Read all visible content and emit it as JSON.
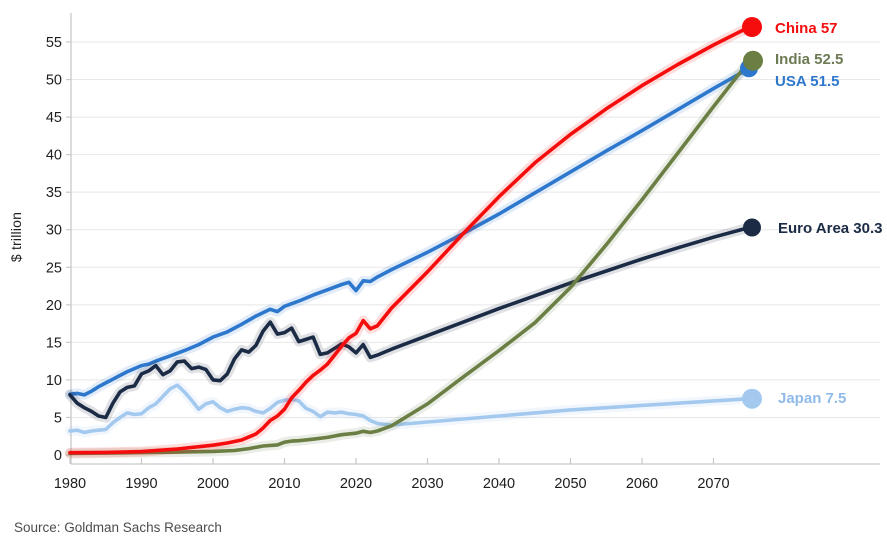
{
  "source_note": "Source: Goldman Sachs Research",
  "chart_data": {
    "type": "line",
    "title": "",
    "ylabel": "$ trillion",
    "xlabel": "",
    "x_ticks": [
      1980,
      1990,
      2000,
      2010,
      2020,
      2030,
      2040,
      2050,
      2060,
      2070
    ],
    "y_ticks": [
      0,
      5,
      10,
      15,
      20,
      25,
      30,
      35,
      40,
      45,
      50,
      55
    ],
    "x_range_years": [
      1980,
      2075
    ],
    "y_range": [
      0,
      57.5
    ],
    "grid": "horizontal-only",
    "legend_position": "end-of-line-labels-right",
    "colors": {
      "gridline": "#e8e8e8",
      "axis": "#c9c9c9",
      "tick_text": "#1d1d1d",
      "source_text": "#4d4d4d"
    },
    "series": [
      {
        "name": "USA",
        "label": "USA 51.5",
        "end_value": 51.5,
        "color": "#2d77cd",
        "text_color": "#2d77cd",
        "points": [
          [
            1980,
            8.1
          ],
          [
            1981,
            8.2
          ],
          [
            1982,
            8.0
          ],
          [
            1983,
            8.5
          ],
          [
            1984,
            9.1
          ],
          [
            1985,
            9.6
          ],
          [
            1986,
            10.1
          ],
          [
            1987,
            10.6
          ],
          [
            1988,
            11.1
          ],
          [
            1989,
            11.5
          ],
          [
            1990,
            11.9
          ],
          [
            1991,
            12.1
          ],
          [
            1992,
            12.5
          ],
          [
            1994,
            13.2
          ],
          [
            1996,
            13.9
          ],
          [
            1998,
            14.7
          ],
          [
            2000,
            15.7
          ],
          [
            2002,
            16.4
          ],
          [
            2004,
            17.4
          ],
          [
            2006,
            18.5
          ],
          [
            2008,
            19.4
          ],
          [
            2009,
            19.1
          ],
          [
            2010,
            19.8
          ],
          [
            2012,
            20.5
          ],
          [
            2014,
            21.3
          ],
          [
            2016,
            22.0
          ],
          [
            2018,
            22.7
          ],
          [
            2019,
            23.0
          ],
          [
            2020,
            21.9
          ],
          [
            2021,
            23.2
          ],
          [
            2022,
            23.1
          ],
          [
            2023,
            23.7
          ],
          [
            2025,
            24.7
          ],
          [
            2030,
            27.0
          ],
          [
            2035,
            29.5
          ],
          [
            2040,
            32.1
          ],
          [
            2045,
            34.9
          ],
          [
            2050,
            37.7
          ],
          [
            2055,
            40.5
          ],
          [
            2060,
            43.2
          ],
          [
            2065,
            46.0
          ],
          [
            2070,
            48.8
          ],
          [
            2075,
            51.5
          ]
        ]
      },
      {
        "name": "Japan",
        "label": "Japan 7.5",
        "end_value": 7.5,
        "color": "#a4c9ef",
        "text_color": "#90bbe9",
        "points": [
          [
            1980,
            3.2
          ],
          [
            1981,
            3.3
          ],
          [
            1982,
            3.0
          ],
          [
            1983,
            3.2
          ],
          [
            1984,
            3.3
          ],
          [
            1985,
            3.4
          ],
          [
            1986,
            4.3
          ],
          [
            1987,
            5.0
          ],
          [
            1988,
            5.6
          ],
          [
            1989,
            5.4
          ],
          [
            1990,
            5.5
          ],
          [
            1991,
            6.3
          ],
          [
            1992,
            6.8
          ],
          [
            1993,
            7.8
          ],
          [
            1994,
            8.8
          ],
          [
            1995,
            9.3
          ],
          [
            1996,
            8.4
          ],
          [
            1997,
            7.3
          ],
          [
            1998,
            6.1
          ],
          [
            1999,
            6.8
          ],
          [
            2000,
            7.1
          ],
          [
            2001,
            6.3
          ],
          [
            2002,
            5.8
          ],
          [
            2003,
            6.1
          ],
          [
            2004,
            6.3
          ],
          [
            2005,
            6.2
          ],
          [
            2006,
            5.8
          ],
          [
            2007,
            5.6
          ],
          [
            2008,
            6.2
          ],
          [
            2009,
            7.0
          ],
          [
            2010,
            7.3
          ],
          [
            2011,
            7.4
          ],
          [
            2012,
            7.2
          ],
          [
            2013,
            6.2
          ],
          [
            2014,
            5.8
          ],
          [
            2015,
            5.1
          ],
          [
            2016,
            5.7
          ],
          [
            2017,
            5.6
          ],
          [
            2018,
            5.7
          ],
          [
            2019,
            5.5
          ],
          [
            2020,
            5.4
          ],
          [
            2021,
            5.2
          ],
          [
            2022,
            4.6
          ],
          [
            2023,
            4.2
          ],
          [
            2025,
            4.0
          ],
          [
            2030,
            4.4
          ],
          [
            2035,
            4.8
          ],
          [
            2040,
            5.2
          ],
          [
            2045,
            5.6
          ],
          [
            2050,
            6.0
          ],
          [
            2055,
            6.3
          ],
          [
            2060,
            6.6
          ],
          [
            2065,
            6.9
          ],
          [
            2070,
            7.2
          ],
          [
            2075,
            7.5
          ]
        ]
      },
      {
        "name": "Euro Area",
        "label": "Euro Area 30.3",
        "end_value": 30.3,
        "color": "#1b2b45",
        "text_color": "#1b2b45",
        "points": [
          [
            1980,
            8.0
          ],
          [
            1981,
            6.9
          ],
          [
            1982,
            6.3
          ],
          [
            1983,
            5.8
          ],
          [
            1984,
            5.2
          ],
          [
            1985,
            5.0
          ],
          [
            1986,
            6.9
          ],
          [
            1987,
            8.4
          ],
          [
            1988,
            9.0
          ],
          [
            1989,
            9.2
          ],
          [
            1990,
            10.8
          ],
          [
            1991,
            11.2
          ],
          [
            1992,
            11.9
          ],
          [
            1993,
            10.7
          ],
          [
            1994,
            11.2
          ],
          [
            1995,
            12.4
          ],
          [
            1996,
            12.5
          ],
          [
            1997,
            11.5
          ],
          [
            1998,
            11.7
          ],
          [
            1999,
            11.4
          ],
          [
            2000,
            10.0
          ],
          [
            2001,
            9.9
          ],
          [
            2002,
            10.8
          ],
          [
            2003,
            12.8
          ],
          [
            2004,
            14.0
          ],
          [
            2005,
            13.7
          ],
          [
            2006,
            14.6
          ],
          [
            2007,
            16.5
          ],
          [
            2008,
            17.7
          ],
          [
            2009,
            16.1
          ],
          [
            2010,
            16.3
          ],
          [
            2011,
            16.9
          ],
          [
            2012,
            15.1
          ],
          [
            2013,
            15.4
          ],
          [
            2014,
            15.7
          ],
          [
            2015,
            13.4
          ],
          [
            2016,
            13.6
          ],
          [
            2017,
            14.2
          ],
          [
            2018,
            14.8
          ],
          [
            2019,
            14.4
          ],
          [
            2020,
            13.6
          ],
          [
            2021,
            14.7
          ],
          [
            2022,
            13.0
          ],
          [
            2023,
            13.3
          ],
          [
            2025,
            14.1
          ],
          [
            2030,
            15.9
          ],
          [
            2035,
            17.7
          ],
          [
            2040,
            19.5
          ],
          [
            2045,
            21.2
          ],
          [
            2050,
            22.9
          ],
          [
            2055,
            24.5
          ],
          [
            2060,
            26.1
          ],
          [
            2065,
            27.6
          ],
          [
            2070,
            29.0
          ],
          [
            2075,
            30.3
          ]
        ]
      },
      {
        "name": "India",
        "label": "India 52.5",
        "end_value": 52.5,
        "color": "#6b7f45",
        "text_color": "#6d7b55",
        "points": [
          [
            1980,
            0.2
          ],
          [
            1990,
            0.32
          ],
          [
            1995,
            0.38
          ],
          [
            2000,
            0.48
          ],
          [
            2003,
            0.6
          ],
          [
            2005,
            0.85
          ],
          [
            2007,
            1.2
          ],
          [
            2009,
            1.35
          ],
          [
            2010,
            1.7
          ],
          [
            2011,
            1.85
          ],
          [
            2012,
            1.9
          ],
          [
            2014,
            2.1
          ],
          [
            2016,
            2.35
          ],
          [
            2018,
            2.7
          ],
          [
            2020,
            2.9
          ],
          [
            2021,
            3.15
          ],
          [
            2022,
            3.0
          ],
          [
            2023,
            3.2
          ],
          [
            2025,
            3.9
          ],
          [
            2030,
            6.8
          ],
          [
            2035,
            10.4
          ],
          [
            2040,
            13.9
          ],
          [
            2045,
            17.6
          ],
          [
            2050,
            22.3
          ],
          [
            2055,
            28.0
          ],
          [
            2060,
            34.0
          ],
          [
            2065,
            40.2
          ],
          [
            2070,
            46.4
          ],
          [
            2075,
            52.5
          ]
        ]
      },
      {
        "name": "China",
        "label": "China 57",
        "end_value": 57,
        "color": "#f50d0d",
        "text_color": "#f50d0d",
        "points": [
          [
            1980,
            0.3
          ],
          [
            1985,
            0.35
          ],
          [
            1990,
            0.45
          ],
          [
            1995,
            0.8
          ],
          [
            2000,
            1.3
          ],
          [
            2002,
            1.6
          ],
          [
            2004,
            2.0
          ],
          [
            2006,
            2.8
          ],
          [
            2007,
            3.6
          ],
          [
            2008,
            4.6
          ],
          [
            2009,
            5.2
          ],
          [
            2010,
            6.1
          ],
          [
            2011,
            7.6
          ],
          [
            2012,
            8.6
          ],
          [
            2013,
            9.7
          ],
          [
            2014,
            10.6
          ],
          [
            2015,
            11.3
          ],
          [
            2016,
            12.1
          ],
          [
            2017,
            13.3
          ],
          [
            2018,
            14.5
          ],
          [
            2019,
            15.6
          ],
          [
            2020,
            16.2
          ],
          [
            2021,
            17.9
          ],
          [
            2022,
            16.8
          ],
          [
            2023,
            17.2
          ],
          [
            2025,
            19.6
          ],
          [
            2030,
            24.4
          ],
          [
            2035,
            29.5
          ],
          [
            2040,
            34.4
          ],
          [
            2045,
            38.9
          ],
          [
            2050,
            42.7
          ],
          [
            2055,
            46.1
          ],
          [
            2060,
            49.2
          ],
          [
            2065,
            52.0
          ],
          [
            2070,
            54.6
          ],
          [
            2075,
            57.0
          ]
        ]
      }
    ]
  }
}
